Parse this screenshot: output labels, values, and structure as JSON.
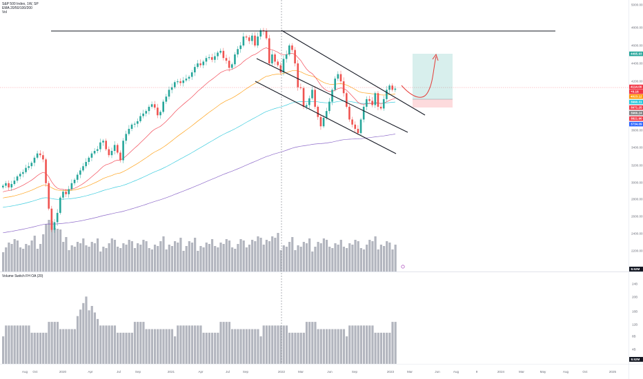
{
  "header": {
    "symbol_line": "S&P 500 Index, 1W, SP",
    "ema_line": "EMA 20/50/100/200",
    "vol_line": "Vol"
  },
  "lower_pane": {
    "indicator_title": "Volume Switch FH OA (20)"
  },
  "price_axis": {
    "ticks": [
      "5000.00",
      "4800.00",
      "4600.00",
      "4400.00",
      "4200.00",
      "3600.00",
      "3400.00",
      "3200.00",
      "3000.00",
      "2800.00",
      "2600.00",
      "2400.00",
      "2200.00",
      "2000.00"
    ],
    "volume_badge": "8.52M",
    "price_tags": [
      {
        "label": "4495.93",
        "color": "#26a69a"
      },
      {
        "label": "4114.00",
        "color": "#f23645"
      },
      {
        "label": "+0.16",
        "color": "#f23645"
      },
      {
        "label": "4023.12",
        "color": "#ff9800"
      },
      {
        "label": "3990.31",
        "color": "#26c6da"
      },
      {
        "label": "3971.25",
        "color": "#f23645"
      },
      {
        "label": "3966.24",
        "color": "#808080"
      },
      {
        "label": "3821.90",
        "color": "#f23645"
      },
      {
        "label": "3734.09",
        "color": "#2962ff"
      }
    ]
  },
  "lower_axis": {
    "ticks": [
      "24B",
      "20B",
      "16B",
      "12B",
      "8B",
      "4B"
    ],
    "badge": "8.52M"
  },
  "time_axis": {
    "labels": [
      "Aug",
      "Oct",
      "2020",
      "Apr",
      "Jul",
      "Sep",
      "2021",
      "Apr",
      "Jul",
      "Sep",
      "2022",
      "Mar",
      "Jun",
      "Sep",
      "2023",
      "Mar",
      "Jun",
      "Aug",
      "9",
      "2024",
      "Mar",
      "May",
      "Aug",
      "Oct",
      "2025"
    ]
  },
  "colors": {
    "up": "#26a69a",
    "down": "#ef5350",
    "ema20": "#f23645",
    "ema50": "#ff9800",
    "ema100": "#26c6da",
    "ema200": "#7e57c2",
    "volume": "#b2b5be"
  },
  "chart_data": [
    {
      "type": "candlestick",
      "title": "S&P 500 Index, 1W, SP",
      "ylim": [
        2000,
        5000
      ],
      "annotations": [
        "horizontal resistance line near 4800",
        "descending channel drawn from early 2022",
        "long position box: target 4495.93, stop near 3900",
        "curved arrow projecting upward"
      ],
      "close_weekly_approx": [
        2970,
        3000,
        2950,
        2990,
        3030,
        3080,
        3110,
        3130,
        3180,
        3200,
        3240,
        3300,
        3350,
        3330,
        3280,
        3000,
        2700,
        2450,
        2540,
        2650,
        2830,
        2900,
        2870,
        2930,
        3000,
        3040,
        3100,
        3150,
        3200,
        3250,
        3300,
        3350,
        3380,
        3400,
        3480,
        3500,
        3400,
        3330,
        3380,
        3450,
        3360,
        3270,
        3500,
        3580,
        3640,
        3690,
        3700,
        3730,
        3790,
        3820,
        3850,
        3900,
        3930,
        3890,
        3800,
        3840,
        3960,
        4020,
        4100,
        4130,
        4190,
        4200,
        4180,
        4210,
        4230,
        4250,
        4300,
        4360,
        4400,
        4380,
        4420,
        4460,
        4470,
        4440,
        4480,
        4520,
        4540,
        4460,
        4430,
        4350,
        4390,
        4500,
        4560,
        4600,
        4700,
        4690,
        4650,
        4710,
        4600,
        4700,
        4770,
        4760,
        4680,
        4400,
        4500,
        4420,
        4380,
        4300,
        4450,
        4500,
        4600,
        4550,
        4400,
        4130,
        4120,
        3900,
        3920,
        4000,
        4100,
        3900,
        3780,
        3670,
        3770,
        3850,
        3960,
        4100,
        4230,
        4280,
        4200,
        4060,
        3900,
        3750,
        3690,
        3640,
        3590,
        3750,
        3900,
        3990,
        3970,
        3920,
        4060,
        3900,
        3880,
        3990,
        4100,
        4150,
        4100,
        4114
      ],
      "ema_series": [
        "EMA 20",
        "EMA 50",
        "EMA 100",
        "EMA 200"
      ]
    },
    {
      "type": "bar",
      "title": "Volume Switch FH OA (20)",
      "ylim": [
        0,
        24
      ],
      "ylabel": "B"
    }
  ]
}
